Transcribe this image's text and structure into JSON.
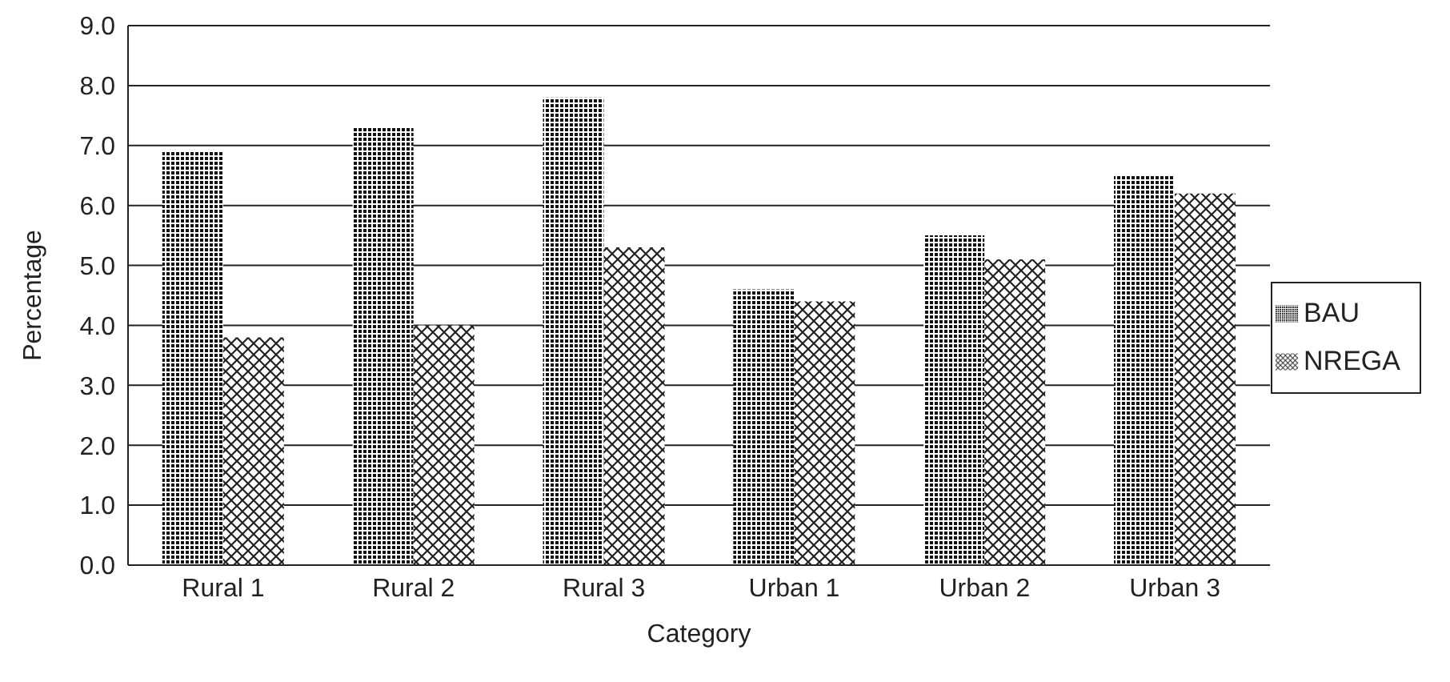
{
  "chart_data": {
    "type": "bar",
    "xlabel": "Category",
    "ylabel": "Percentage",
    "categories": [
      "Rural 1",
      "Rural 2",
      "Rural 3",
      "Urban 1",
      "Urban 2",
      "Urban 3"
    ],
    "series": [
      {
        "name": "BAU",
        "color": "#111111",
        "values": [
          6.9,
          7.3,
          7.8,
          4.6,
          5.5,
          6.5
        ]
      },
      {
        "name": "NREGA",
        "color": "#222222",
        "values": [
          3.8,
          4.0,
          5.3,
          4.4,
          5.1,
          6.2
        ]
      }
    ],
    "ylim": [
      0,
      9
    ],
    "yticks": [
      {
        "value": 0,
        "label": "0.0"
      },
      {
        "value": 1,
        "label": "1.0"
      },
      {
        "value": 2,
        "label": "2.0"
      },
      {
        "value": 3,
        "label": "3.0"
      },
      {
        "value": 4,
        "label": "4.0"
      },
      {
        "value": 5,
        "label": "5.0"
      },
      {
        "value": 6,
        "label": "6.0"
      },
      {
        "value": 7,
        "label": "7.0"
      },
      {
        "value": 8,
        "label": "8.0"
      },
      {
        "value": 9,
        "label": "9.0"
      }
    ],
    "grid": "y",
    "legend": "right"
  }
}
